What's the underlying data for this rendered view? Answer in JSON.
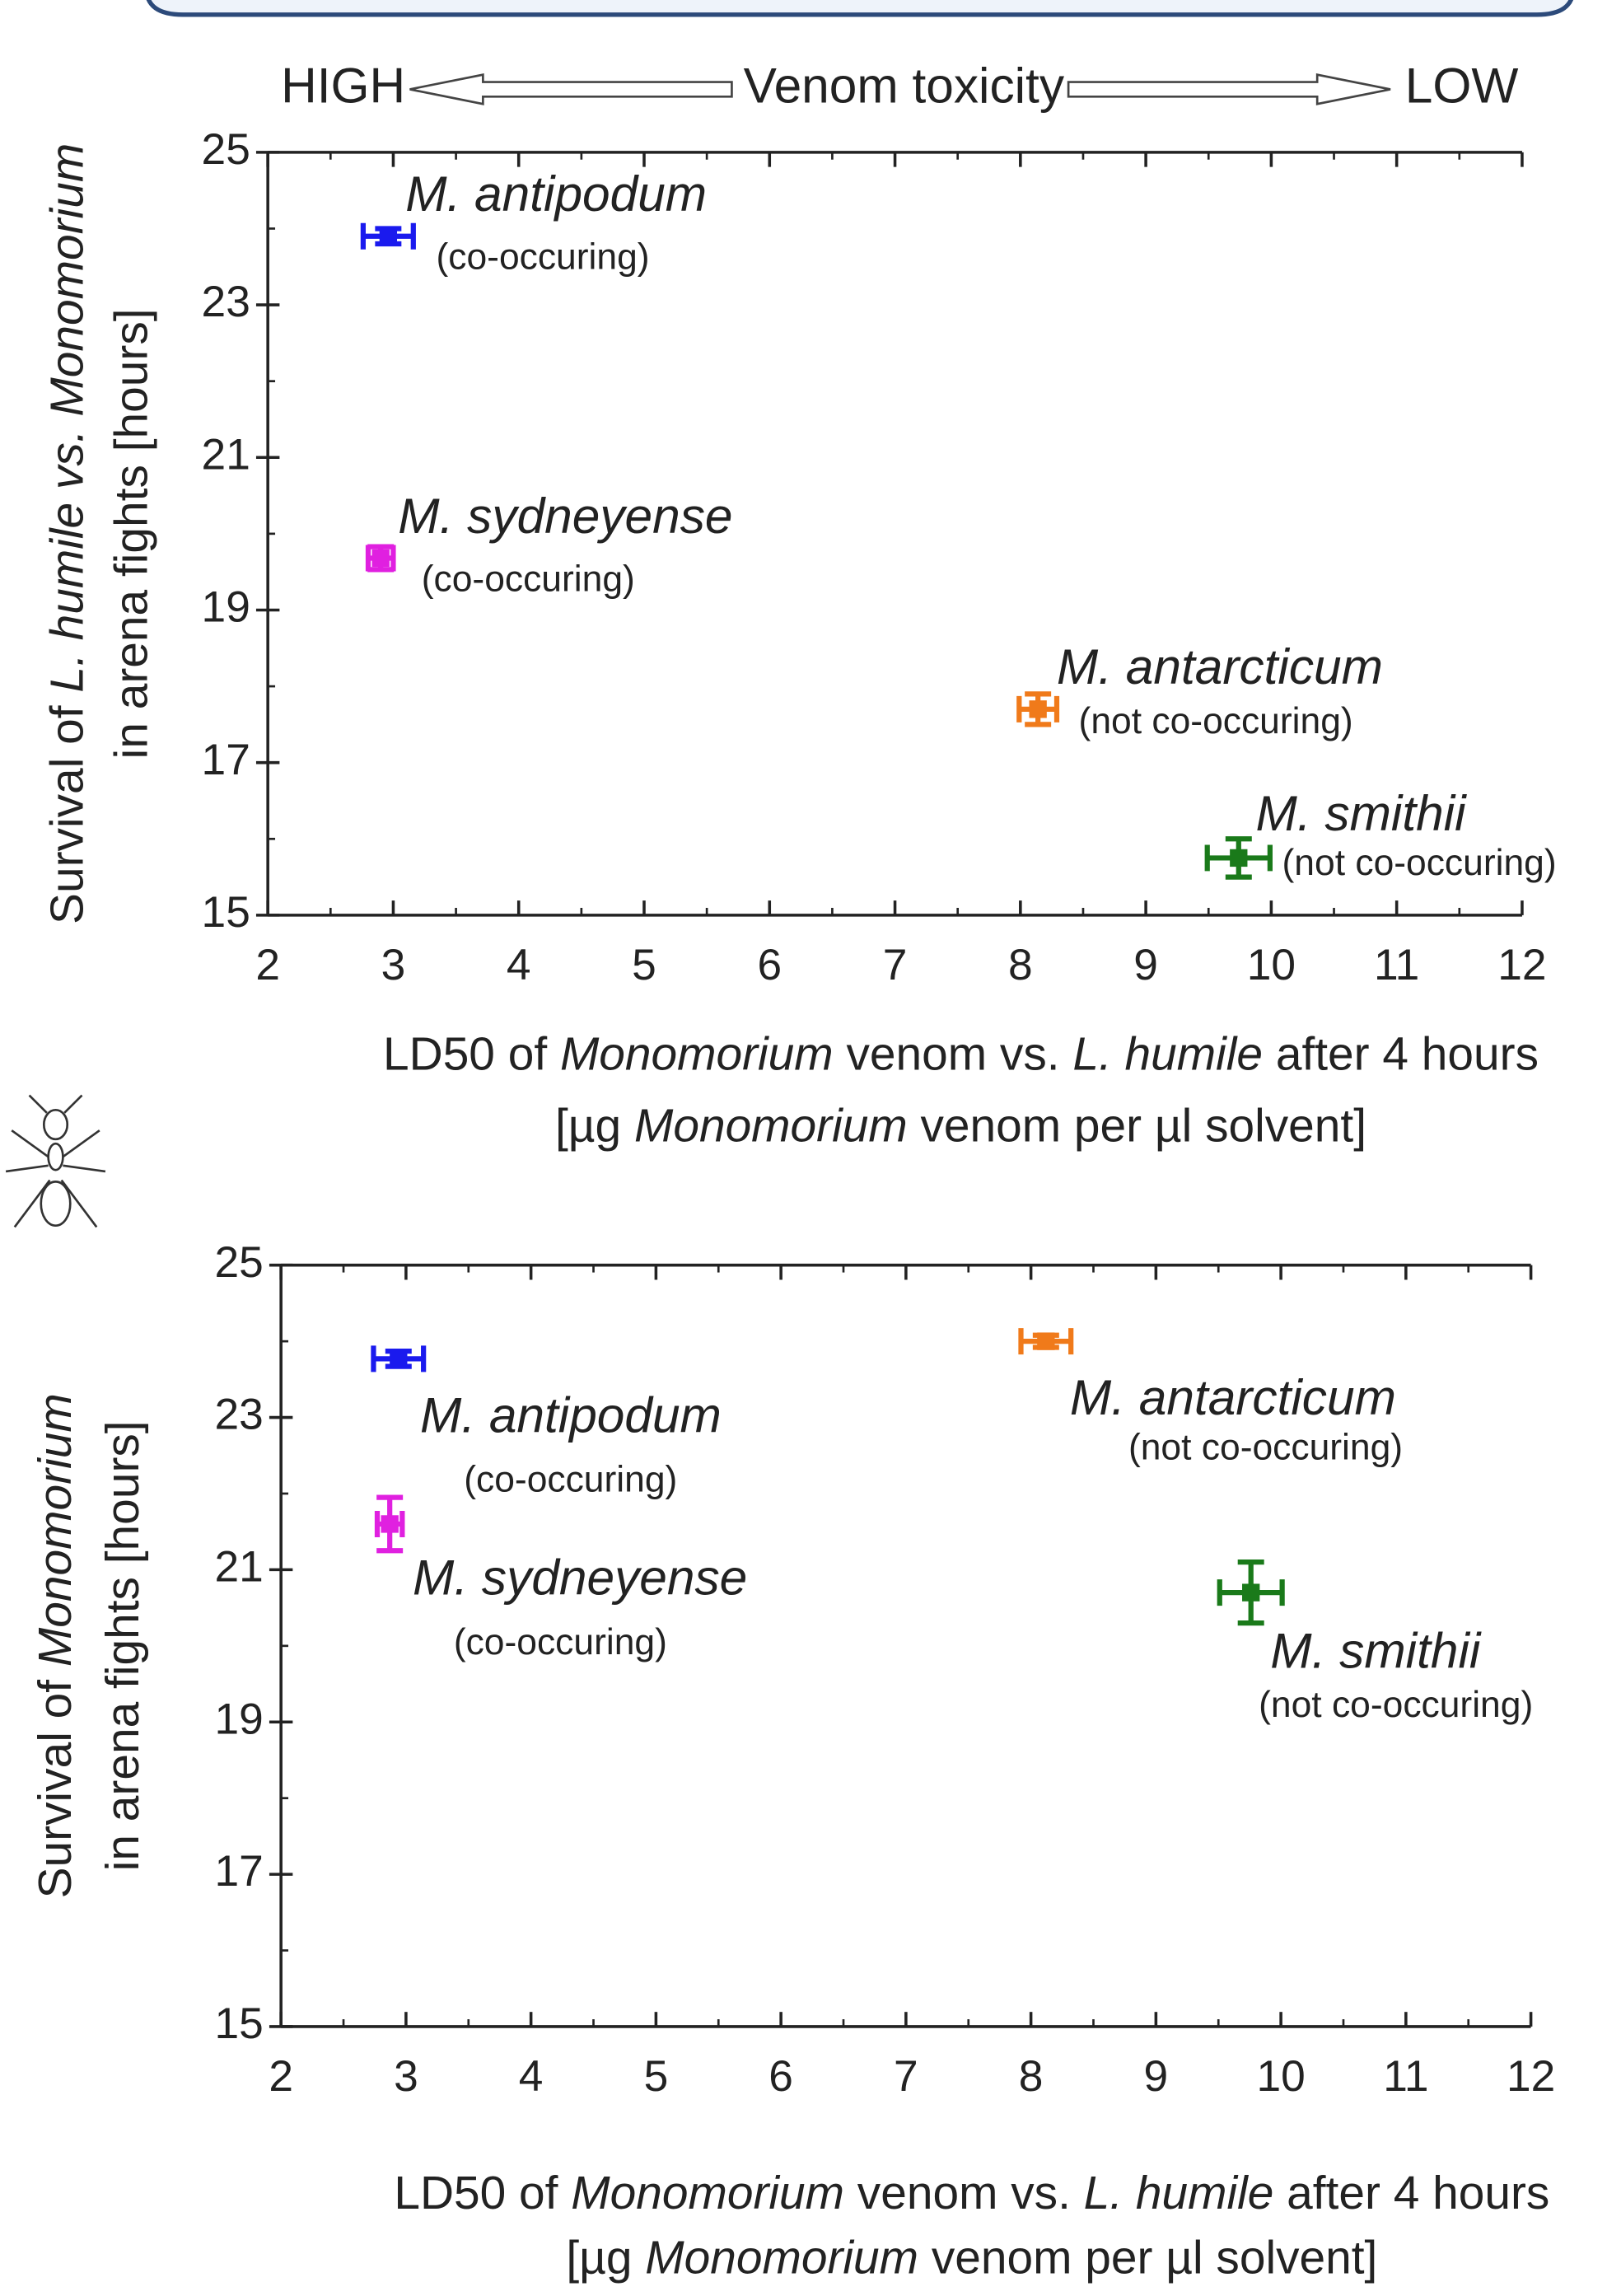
{
  "chart_data": [
    {
      "type": "scatter",
      "header": [
        "HIGH",
        "Venom toxicity",
        "LOW"
      ],
      "ylabel": [
        "Survival of ",
        "L. humile vs. Monomorium",
        "in arena fights [hours]"
      ],
      "xlabel": [
        [
          "LD50 of ",
          "Monomorium",
          " venom vs. ",
          "L. humile",
          " after 4 hours"
        ],
        [
          "[µg ",
          "Monomorium",
          "  venom per µl solvent]"
        ]
      ],
      "xlim": [
        2,
        12
      ],
      "xticks": [
        2,
        3,
        4,
        5,
        6,
        7,
        8,
        9,
        10,
        11,
        12
      ],
      "xminorticks": [
        2.5,
        3.5,
        4.5,
        5.5,
        6.5,
        7.5,
        8.5,
        9.5,
        10.5,
        11.5
      ],
      "ylim": [
        15,
        25
      ],
      "yticks": [
        15,
        17,
        19,
        21,
        23,
        25
      ],
      "yminorticks": [
        16,
        18,
        20,
        22,
        24
      ],
      "series": [
        {
          "name": "M. antipodum",
          "note": "(co-occuring)",
          "color": "#1a1aee",
          "x": [
            2.96
          ],
          "values": [
            23.9
          ],
          "xerr": [
            0.2
          ],
          "yerr": [
            0.1
          ]
        },
        {
          "name": "M. sydneyense",
          "note": "(co-occuring)",
          "color": "#e020e0",
          "x": [
            2.9
          ],
          "values": [
            19.68
          ],
          "xerr": [
            0.1
          ],
          "yerr": [
            0.15
          ]
        },
        {
          "name": "M. antarcticum",
          "note": "(not co-occuring)",
          "color": "#f07a1a",
          "x": [
            8.14
          ],
          "values": [
            17.7
          ],
          "xerr": [
            0.15
          ],
          "yerr": [
            0.2
          ]
        },
        {
          "name": "M. smithii",
          "note": "(not co-occuring)",
          "color": "#1a7a1a",
          "x": [
            9.74
          ],
          "values": [
            15.75
          ],
          "xerr": [
            0.25
          ],
          "yerr": [
            0.25
          ]
        }
      ]
    },
    {
      "type": "scatter",
      "ylabel": [
        "Survival of ",
        "Monomorium",
        "in arena fights [hours]"
      ],
      "xlabel": [
        [
          "LD50 of ",
          "Monomorium",
          " venom vs. ",
          "L. humile",
          " after 4 hours"
        ],
        [
          "[µg ",
          "Monomorium",
          " venom per µl solvent]"
        ]
      ],
      "xlim": [
        2,
        12
      ],
      "xticks": [
        2,
        3,
        4,
        5,
        6,
        7,
        8,
        9,
        10,
        11,
        12
      ],
      "xminorticks": [
        2.5,
        3.5,
        4.5,
        5.5,
        6.5,
        7.5,
        8.5,
        9.5,
        10.5,
        11.5
      ],
      "ylim": [
        15,
        25
      ],
      "yticks": [
        15,
        17,
        19,
        21,
        23,
        25
      ],
      "yminorticks": [
        16,
        18,
        20,
        22,
        24
      ],
      "series": [
        {
          "name": "M. antipodum",
          "note": "(co-occuring)",
          "color": "#1a1aee",
          "x": [
            2.94
          ],
          "values": [
            23.77
          ],
          "xerr": [
            0.2
          ],
          "yerr": [
            0.1
          ]
        },
        {
          "name": "M. sydneyense",
          "note": "(co-occuring)",
          "color": "#e020e0",
          "x": [
            2.87
          ],
          "values": [
            21.6
          ],
          "xerr": [
            0.1
          ],
          "yerr": [
            0.35
          ]
        },
        {
          "name": "M. antarcticum",
          "note": "(not co-occuring)",
          "color": "#f07a1a",
          "x": [
            8.12
          ],
          "values": [
            24.0
          ],
          "xerr": [
            0.2
          ],
          "yerr": [
            0.08
          ]
        },
        {
          "name": "M. smithii",
          "note": "(not co-occuring)",
          "color": "#1a7a1a",
          "x": [
            9.76
          ],
          "values": [
            20.7
          ],
          "xerr": [
            0.25
          ],
          "yerr": [
            0.4
          ]
        }
      ]
    }
  ]
}
